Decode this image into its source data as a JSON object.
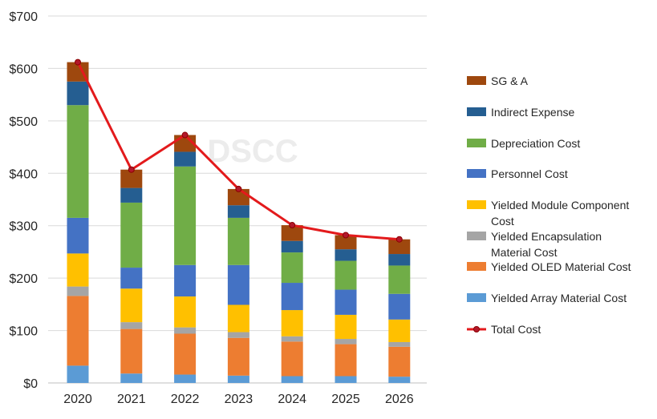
{
  "watermark": "DSCC",
  "chart_data": {
    "type": "bar",
    "stacked": true,
    "title": "",
    "xlabel": "",
    "ylabel": "",
    "categories": [
      "2020",
      "2021",
      "2022",
      "2023",
      "2024",
      "2025",
      "2026"
    ],
    "ylim": [
      0,
      700
    ],
    "yticks": [
      0,
      100,
      200,
      300,
      400,
      500,
      600,
      700
    ],
    "ytick_labels": [
      "$0",
      "$100",
      "$200",
      "$300",
      "$400",
      "$500",
      "$600",
      "$700"
    ],
    "grid": true,
    "legend_position": "right",
    "series": [
      {
        "name": "Yielded Array Material Cost",
        "color": "#5b9bd5",
        "values": [
          33,
          18,
          16,
          14,
          13,
          13,
          12
        ]
      },
      {
        "name": "Yielded OLED Material Cost",
        "color": "#ed7d31",
        "values": [
          133,
          85,
          78,
          72,
          66,
          61,
          57
        ]
      },
      {
        "name": "Yielded Encapsulation Material Cost",
        "color": "#a5a5a5",
        "values": [
          18,
          13,
          12,
          11,
          10,
          10,
          9
        ]
      },
      {
        "name": "Yielded Module Component Cost",
        "color": "#ffc000",
        "values": [
          63,
          64,
          59,
          52,
          50,
          46,
          43
        ]
      },
      {
        "name": "Personnel Cost",
        "color": "#4472c4",
        "values": [
          68,
          40,
          60,
          76,
          52,
          48,
          49
        ]
      },
      {
        "name": "Depreciation Cost",
        "color": "#70ad47",
        "values": [
          215,
          124,
          188,
          90,
          58,
          55,
          54
        ]
      },
      {
        "name": "Indirect Expense",
        "color": "#255e91",
        "values": [
          45,
          28,
          28,
          24,
          22,
          22,
          22
        ]
      },
      {
        "name": "SG & A",
        "color": "#9e480e",
        "values": [
          37,
          35,
          32,
          31,
          30,
          27,
          28
        ]
      }
    ],
    "line_series": {
      "name": "Total Cost",
      "color": "#e31a1c",
      "marker_fill": "#b2182b",
      "values": [
        612,
        407,
        473,
        370,
        301,
        282,
        274
      ]
    },
    "legend_order": [
      "SG & A",
      "Indirect Expense",
      "Depreciation Cost",
      "Personnel Cost",
      "Yielded Module Component Cost",
      "Yielded Encapsulation Material Cost",
      "Yielded OLED Material Cost",
      "Yielded Array Material Cost",
      "Total Cost"
    ]
  }
}
